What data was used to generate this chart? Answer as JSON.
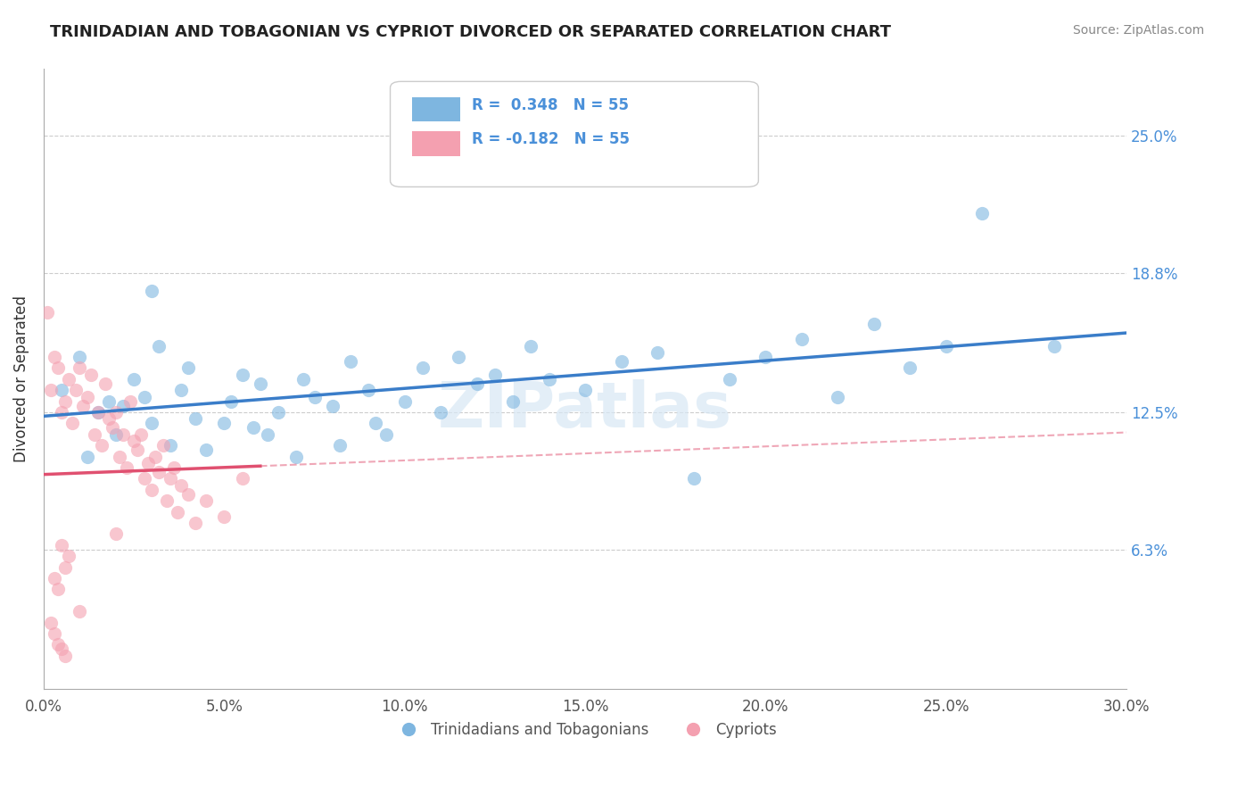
{
  "title": "TRINIDADIAN AND TOBAGONIAN VS CYPRIOT DIVORCED OR SEPARATED CORRELATION CHART",
  "source_text": "Source: ZipAtlas.com",
  "xlabel_bottom": "",
  "ylabel": "Divorced or Separated",
  "xtick_labels": [
    "0.0%",
    "5.0%",
    "10.0%",
    "15.0%",
    "20.0%",
    "25.0%",
    "30.0%"
  ],
  "xtick_values": [
    0.0,
    5.0,
    10.0,
    15.0,
    20.0,
    25.0,
    30.0
  ],
  "ytick_labels": [
    "6.3%",
    "12.5%",
    "18.8%",
    "25.0%"
  ],
  "ytick_values": [
    6.3,
    12.5,
    18.8,
    25.0
  ],
  "xlim": [
    0.0,
    30.0
  ],
  "ylim": [
    0.0,
    28.0
  ],
  "legend_entries": [
    {
      "label": "R =  0.348   N = 55",
      "color": "#a8c4e0"
    },
    {
      "label": "R = -0.182   N = 55",
      "color": "#f4a0b0"
    }
  ],
  "legend_label1": "Trinidadians and Tobagonians",
  "legend_label2": "Cypriots",
  "R_blue": 0.348,
  "R_pink": -0.182,
  "N": 55,
  "blue_color": "#7EB6E0",
  "pink_color": "#F4A0B0",
  "blue_line_color": "#3A7DC9",
  "pink_line_color": "#E05070",
  "blue_scatter": [
    [
      0.5,
      13.5
    ],
    [
      1.0,
      15.0
    ],
    [
      1.2,
      10.5
    ],
    [
      1.5,
      12.5
    ],
    [
      1.8,
      13.0
    ],
    [
      2.0,
      11.5
    ],
    [
      2.2,
      12.8
    ],
    [
      2.5,
      14.0
    ],
    [
      2.8,
      13.2
    ],
    [
      3.0,
      12.0
    ],
    [
      3.2,
      15.5
    ],
    [
      3.5,
      11.0
    ],
    [
      3.8,
      13.5
    ],
    [
      4.0,
      14.5
    ],
    [
      4.2,
      12.2
    ],
    [
      4.5,
      10.8
    ],
    [
      5.0,
      12.0
    ],
    [
      5.2,
      13.0
    ],
    [
      5.5,
      14.2
    ],
    [
      5.8,
      11.8
    ],
    [
      6.0,
      13.8
    ],
    [
      6.2,
      11.5
    ],
    [
      6.5,
      12.5
    ],
    [
      7.0,
      10.5
    ],
    [
      7.2,
      14.0
    ],
    [
      7.5,
      13.2
    ],
    [
      8.0,
      12.8
    ],
    [
      8.2,
      11.0
    ],
    [
      8.5,
      14.8
    ],
    [
      9.0,
      13.5
    ],
    [
      9.2,
      12.0
    ],
    [
      9.5,
      11.5
    ],
    [
      10.0,
      13.0
    ],
    [
      10.5,
      14.5
    ],
    [
      11.0,
      12.5
    ],
    [
      11.5,
      15.0
    ],
    [
      12.0,
      13.8
    ],
    [
      12.5,
      14.2
    ],
    [
      13.0,
      13.0
    ],
    [
      13.5,
      15.5
    ],
    [
      14.0,
      14.0
    ],
    [
      15.0,
      13.5
    ],
    [
      16.0,
      14.8
    ],
    [
      17.0,
      15.2
    ],
    [
      18.0,
      9.5
    ],
    [
      19.0,
      14.0
    ],
    [
      20.0,
      15.0
    ],
    [
      21.0,
      15.8
    ],
    [
      22.0,
      13.2
    ],
    [
      23.0,
      16.5
    ],
    [
      24.0,
      14.5
    ],
    [
      25.0,
      15.5
    ],
    [
      26.0,
      21.5
    ],
    [
      28.0,
      15.5
    ],
    [
      3.0,
      18.0
    ]
  ],
  "pink_scatter": [
    [
      0.1,
      17.0
    ],
    [
      0.2,
      13.5
    ],
    [
      0.3,
      15.0
    ],
    [
      0.4,
      14.5
    ],
    [
      0.5,
      12.5
    ],
    [
      0.6,
      13.0
    ],
    [
      0.7,
      14.0
    ],
    [
      0.8,
      12.0
    ],
    [
      0.9,
      13.5
    ],
    [
      1.0,
      14.5
    ],
    [
      1.1,
      12.8
    ],
    [
      1.2,
      13.2
    ],
    [
      1.3,
      14.2
    ],
    [
      1.4,
      11.5
    ],
    [
      1.5,
      12.5
    ],
    [
      1.6,
      11.0
    ],
    [
      1.7,
      13.8
    ],
    [
      1.8,
      12.2
    ],
    [
      1.9,
      11.8
    ],
    [
      2.0,
      12.5
    ],
    [
      2.1,
      10.5
    ],
    [
      2.2,
      11.5
    ],
    [
      2.3,
      10.0
    ],
    [
      2.4,
      13.0
    ],
    [
      2.5,
      11.2
    ],
    [
      2.6,
      10.8
    ],
    [
      2.7,
      11.5
    ],
    [
      2.8,
      9.5
    ],
    [
      2.9,
      10.2
    ],
    [
      3.0,
      9.0
    ],
    [
      3.1,
      10.5
    ],
    [
      3.2,
      9.8
    ],
    [
      3.3,
      11.0
    ],
    [
      3.4,
      8.5
    ],
    [
      3.5,
      9.5
    ],
    [
      3.6,
      10.0
    ],
    [
      3.7,
      8.0
    ],
    [
      3.8,
      9.2
    ],
    [
      4.0,
      8.8
    ],
    [
      4.2,
      7.5
    ],
    [
      4.5,
      8.5
    ],
    [
      5.0,
      7.8
    ],
    [
      0.5,
      6.5
    ],
    [
      0.6,
      5.5
    ],
    [
      0.7,
      6.0
    ],
    [
      0.3,
      5.0
    ],
    [
      0.4,
      4.5
    ],
    [
      1.0,
      3.5
    ],
    [
      5.5,
      9.5
    ],
    [
      0.2,
      3.0
    ],
    [
      0.3,
      2.5
    ],
    [
      0.4,
      2.0
    ],
    [
      0.5,
      1.8
    ],
    [
      0.6,
      1.5
    ],
    [
      2.0,
      7.0
    ]
  ],
  "watermark": "ZIPatlas",
  "background_color": "#ffffff",
  "grid_color": "#cccccc"
}
